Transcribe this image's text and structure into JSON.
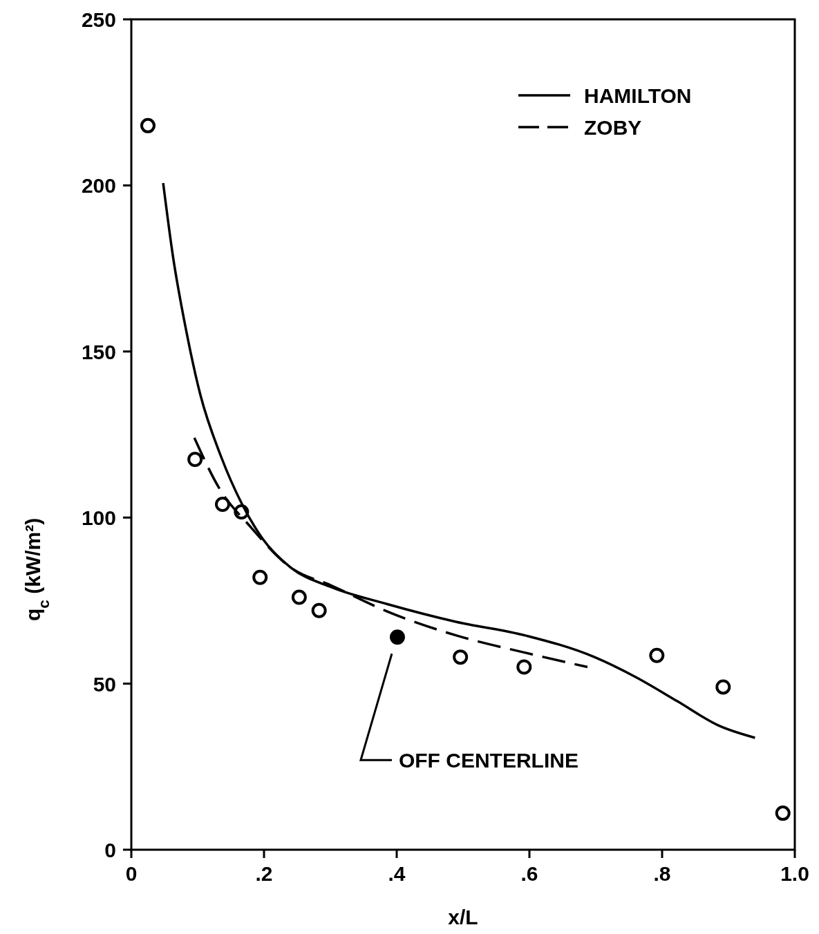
{
  "chart_data": {
    "type": "line",
    "xlabel": "x/L",
    "ylabel": "q$_{c}$   (kW/m²)",
    "xlim": [
      0,
      1.0
    ],
    "ylim": [
      0,
      250
    ],
    "xticks": [
      0,
      {
        "value": 0.2,
        "label": ".2"
      },
      {
        "value": 0.4,
        "label": ".4"
      },
      {
        "value": 0.6,
        "label": ".6"
      },
      {
        "value": 0.8,
        "label": ".8"
      },
      {
        "value": 1.0,
        "label": "1.0"
      }
    ],
    "yticks": [
      0,
      50,
      100,
      150,
      200,
      250
    ],
    "grid": false,
    "legend": "top right",
    "series": [
      {
        "name": "HAMILTON",
        "line_style": "solid",
        "color": "#000000",
        "x": [
          0.048,
          0.0625,
          0.083,
          0.104,
          0.135,
          0.167,
          0.198,
          0.24,
          0.302,
          0.385,
          0.49,
          0.594,
          0.698,
          0.76,
          0.823,
          0.885,
          0.94
        ],
        "values": [
          200.7,
          179,
          156,
          137,
          118.5,
          104,
          93.6,
          85,
          79,
          74,
          68.6,
          64.5,
          58,
          52,
          44.7,
          37.4,
          33.7
        ]
      },
      {
        "name": "ZOBY",
        "line_style": "dashed",
        "color": "#000000",
        "x": [
          0.095,
          0.135,
          0.177,
          0.24,
          0.302,
          0.385,
          0.49,
          0.594,
          0.6875
        ],
        "values": [
          124,
          108,
          97.8,
          85,
          79.5,
          71.8,
          64.5,
          59.3,
          55
        ]
      },
      {
        "type": "scatter",
        "marker": "circle",
        "color": "#000000",
        "x": [
          0.025,
          0.096,
          0.1375,
          0.166,
          0.194,
          0.253,
          0.283,
          0.496,
          0.592,
          0.792,
          0.892,
          0.982
        ],
        "values": [
          218,
          117.5,
          104,
          101.7,
          82,
          76,
          72,
          58,
          55,
          58.5,
          49,
          11
        ]
      },
      {
        "type": "scatter",
        "marker": "circle",
        "color": "#000000",
        "x": [
          0.401
        ],
        "values": [
          64
        ]
      }
    ],
    "annotations": [
      "OFF CENTERLINE"
    ]
  }
}
